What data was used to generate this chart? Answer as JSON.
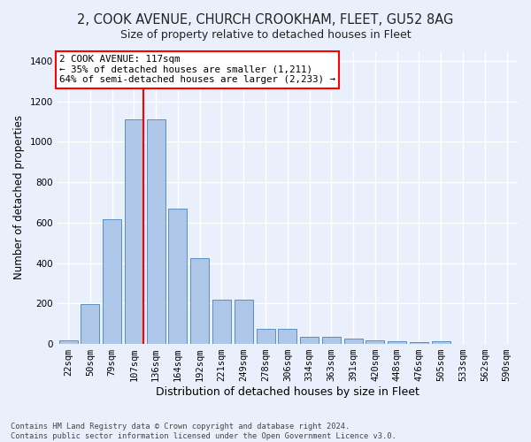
{
  "title_line1": "2, COOK AVENUE, CHURCH CROOKHAM, FLEET, GU52 8AG",
  "title_line2": "Size of property relative to detached houses in Fleet",
  "xlabel": "Distribution of detached houses by size in Fleet",
  "ylabel": "Number of detached properties",
  "footer": "Contains HM Land Registry data © Crown copyright and database right 2024.\nContains public sector information licensed under the Open Government Licence v3.0.",
  "categories": [
    "22sqm",
    "50sqm",
    "79sqm",
    "107sqm",
    "136sqm",
    "164sqm",
    "192sqm",
    "221sqm",
    "249sqm",
    "278sqm",
    "306sqm",
    "334sqm",
    "363sqm",
    "391sqm",
    "420sqm",
    "448sqm",
    "476sqm",
    "505sqm",
    "533sqm",
    "562sqm",
    "590sqm"
  ],
  "values": [
    20,
    195,
    615,
    1110,
    1110,
    670,
    425,
    220,
    220,
    75,
    75,
    35,
    35,
    25,
    20,
    15,
    8,
    12,
    0,
    0,
    0
  ],
  "bar_color": "#aec6e8",
  "bar_edge_color": "#5a8fc0",
  "property_label": "2 COOK AVENUE: 117sqm",
  "annotation_line1": "← 35% of detached houses are smaller (1,211)",
  "annotation_line2": "64% of semi-detached houses are larger (2,233) →",
  "vline_color": "red",
  "annotation_box_facecolor": "white",
  "annotation_box_edgecolor": "red",
  "ylim": [
    0,
    1450
  ],
  "yticks": [
    0,
    200,
    400,
    600,
    800,
    1000,
    1200,
    1400
  ],
  "background_color": "#eaf0fb",
  "grid_color": "#ffffff",
  "vline_x_index": 3.5
}
